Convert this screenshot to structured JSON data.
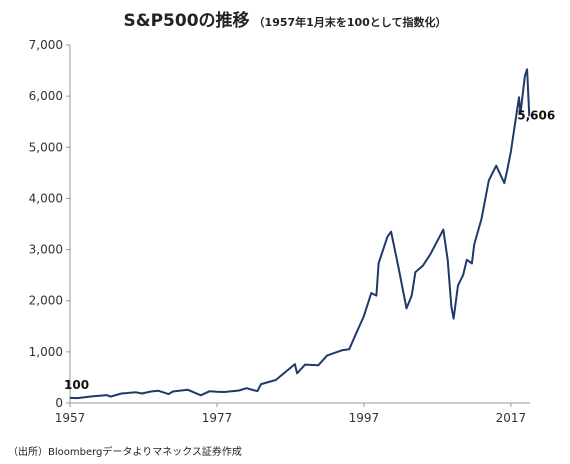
{
  "header": {
    "title": "S&P500の推移",
    "subtitle": "（1957年1月末を100として指数化）"
  },
  "footer": {
    "source": "（出所）Bloombergデータよりマネックス証券作成"
  },
  "colors": {
    "line": "#1f3a68",
    "axis": "#999999"
  },
  "chart_data": {
    "type": "line",
    "title": "S&P500の推移",
    "subtitle": "（1957年1月末を100として指数化）",
    "xlabel": "",
    "ylabel": "",
    "xlim": [
      1957,
      2019.6
    ],
    "ylim": [
      0,
      7000
    ],
    "yticks": [
      0,
      1000,
      2000,
      3000,
      4000,
      5000,
      6000,
      7000
    ],
    "ytick_labels": [
      "0",
      "1,000",
      "2,000",
      "3,000",
      "4,000",
      "5,000",
      "6,000",
      "7,000"
    ],
    "xticks": [
      1957,
      1977,
      1997,
      2017
    ],
    "xtick_labels": [
      "1957",
      "1977",
      "1997",
      "2017"
    ],
    "grid": false,
    "series": [
      {
        "x": [
          1957,
          1958,
          1960,
          1962,
          1962.5,
          1964,
          1966,
          1966.8,
          1968,
          1969,
          1970.4,
          1971,
          1973,
          1974.8,
          1976,
          1977,
          1978,
          1980,
          1981,
          1982.5,
          1983,
          1985,
          1987.6,
          1987.9,
          1989,
          1990.8,
          1992,
          1994,
          1995,
          1996,
          1997,
          1998,
          1998.7,
          1999,
          2000.2,
          2000.7,
          2001.7,
          2002.8,
          2003.5,
          2004,
          2005,
          2006,
          2007.8,
          2008.4,
          2008.9,
          2009.2,
          2009.8,
          2010.5,
          2011,
          2011.7,
          2012,
          2013,
          2014,
          2015,
          2016.1,
          2016.5,
          2017,
          2018.1,
          2018.3,
          2018.9,
          2019.2,
          2019.5
        ],
        "y": [
          100,
          95,
          130,
          155,
          125,
          185,
          210,
          185,
          225,
          240,
          175,
          225,
          260,
          150,
          230,
          220,
          215,
          245,
          290,
          230,
          370,
          450,
          760,
          580,
          750,
          740,
          930,
          1030,
          1050,
          1380,
          1700,
          2150,
          2100,
          2730,
          3250,
          3350,
          2650,
          1850,
          2100,
          2560,
          2680,
          2900,
          3390,
          2800,
          1880,
          1650,
          2300,
          2500,
          2800,
          2730,
          3100,
          3600,
          4350,
          4640,
          4300,
          4550,
          4920,
          5980,
          5650,
          6400,
          6525,
          5606
        ]
      }
    ],
    "annotations": [
      {
        "label": "100",
        "x": 1957,
        "y": 100
      },
      {
        "label": "5,606",
        "x": 2019.5,
        "y": 5606
      }
    ]
  }
}
